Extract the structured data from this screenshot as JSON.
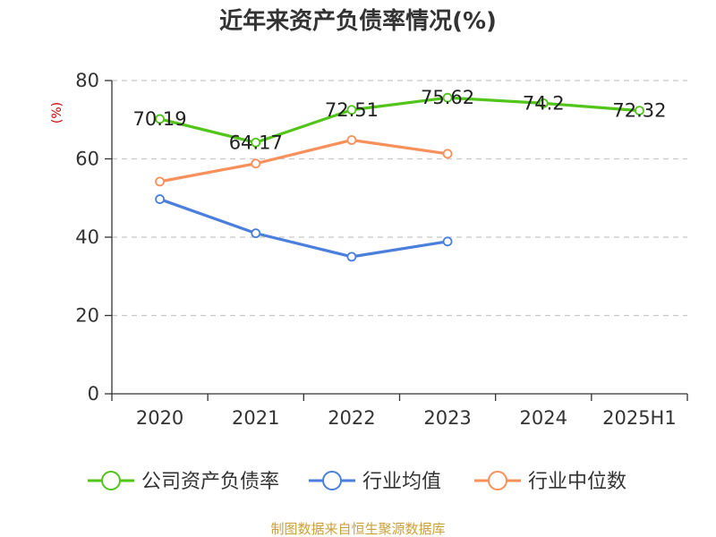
{
  "chart_data": {
    "type": "line",
    "title": "近年来资产负债率情况(%)",
    "ylabel": "(%)",
    "xlabel": "",
    "categories": [
      "2020",
      "2021",
      "2022",
      "2023",
      "2024",
      "2025H1"
    ],
    "y_ticks": [
      "0",
      "20",
      "40",
      "60",
      "80"
    ],
    "ylim": [
      0,
      80
    ],
    "grid": true,
    "legend_position": "bottom",
    "series": [
      {
        "name": "公司资产负债率",
        "color": "#52c41a",
        "values": [
          70.19,
          64.17,
          72.51,
          75.62,
          74.2,
          72.32
        ],
        "labels": [
          "70.19",
          "64.17",
          "72.51",
          "75.62",
          "74.2",
          "72.32"
        ]
      },
      {
        "name": "行业均值",
        "color": "#4a7fdc",
        "values": [
          49.7,
          41.0,
          35.0,
          38.9,
          null,
          null
        ]
      },
      {
        "name": "行业中位数",
        "color": "#f7905a",
        "values": [
          54.2,
          58.8,
          64.8,
          61.3,
          null,
          null
        ]
      }
    ]
  },
  "source": "制图数据来自恒生聚源数据库"
}
